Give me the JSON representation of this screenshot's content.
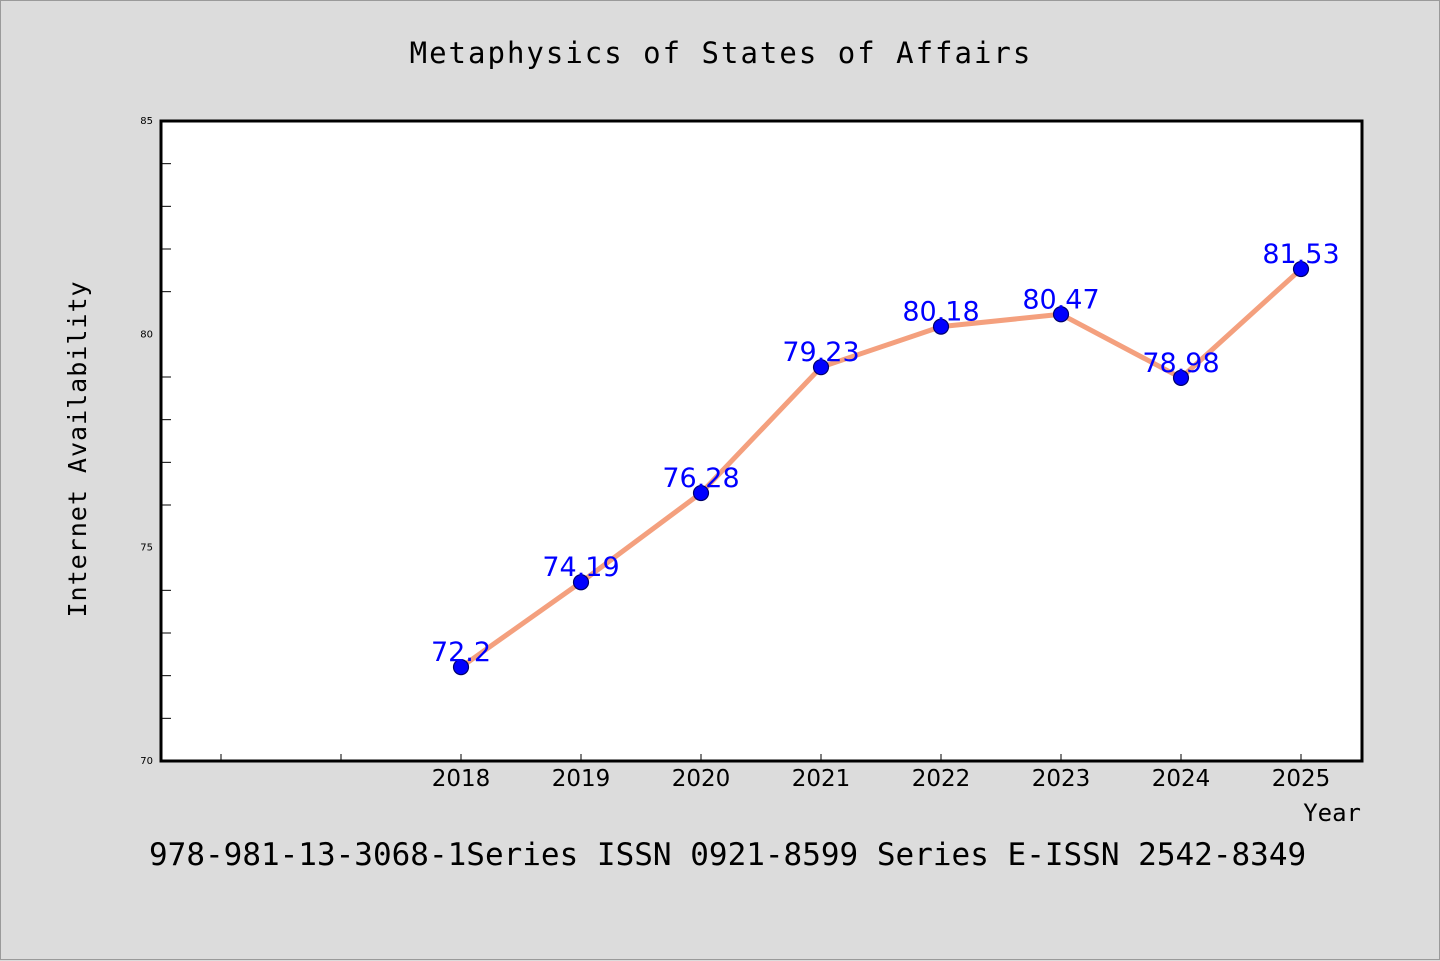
{
  "colors": {
    "figure_background": "#dcdcdc",
    "plot_background": "#ffffff",
    "line": "#f4a07e",
    "markers": "#0000ff",
    "data_labels": "#0000ff",
    "text": "#000000"
  },
  "chart_data": {
    "type": "line",
    "title": "Metaphysics of States of Affairs",
    "xlabel": "Year",
    "ylabel": "Internet Availability",
    "caption": "978-981-13-3068-1Series ISSN 0921-8599 Series E-ISSN 2542-8349",
    "x": [
      "2018",
      "2019",
      "2020",
      "2021",
      "2022",
      "2023",
      "2024",
      "2025"
    ],
    "values": [
      72.2,
      74.19,
      76.28,
      79.23,
      80.18,
      80.47,
      78.98,
      81.53
    ],
    "data_labels": [
      "72.2",
      "74.19",
      "76.28",
      "79.23",
      "80.18",
      "80.47",
      "78.98",
      "81.53"
    ],
    "ylim": [
      70,
      85
    ],
    "y_ticks": [
      "70",
      "75",
      "80",
      "85"
    ],
    "grid": false,
    "legend": "none"
  }
}
